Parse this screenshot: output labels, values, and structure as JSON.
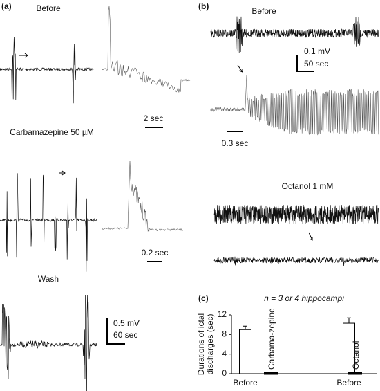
{
  "panels": {
    "a": {
      "label": "(a)",
      "before": "Before",
      "time_2": "2 sec",
      "drug": "Carbamazepine 50 µM",
      "time_02": "0.2 sec",
      "wash": "Wash",
      "volt": "0.5 mV",
      "time_60": "60 sec"
    },
    "b": {
      "label": "(b)",
      "before": "Before",
      "volt": "0.1 mV",
      "time_50": "50 sec",
      "time_03": "0.3 sec",
      "drug": "Octanol 1 mM"
    },
    "c": {
      "label": "(c)"
    }
  },
  "chart_data": {
    "type": "bar",
    "title": "n = 3 or 4 hippocampi",
    "y_label": [
      "Durations of ictal",
      "discharges (sec)"
    ],
    "categories": [
      "Before",
      "Carbama-zepine",
      "Before",
      "Octanol"
    ],
    "values": [
      9.0,
      0.1,
      10.3,
      0.1
    ],
    "errors": [
      0.7,
      null,
      1.1,
      null
    ],
    "color": "#ffffff",
    "ylim": [
      0,
      12
    ],
    "yticks": [
      0,
      4,
      8,
      12
    ]
  }
}
